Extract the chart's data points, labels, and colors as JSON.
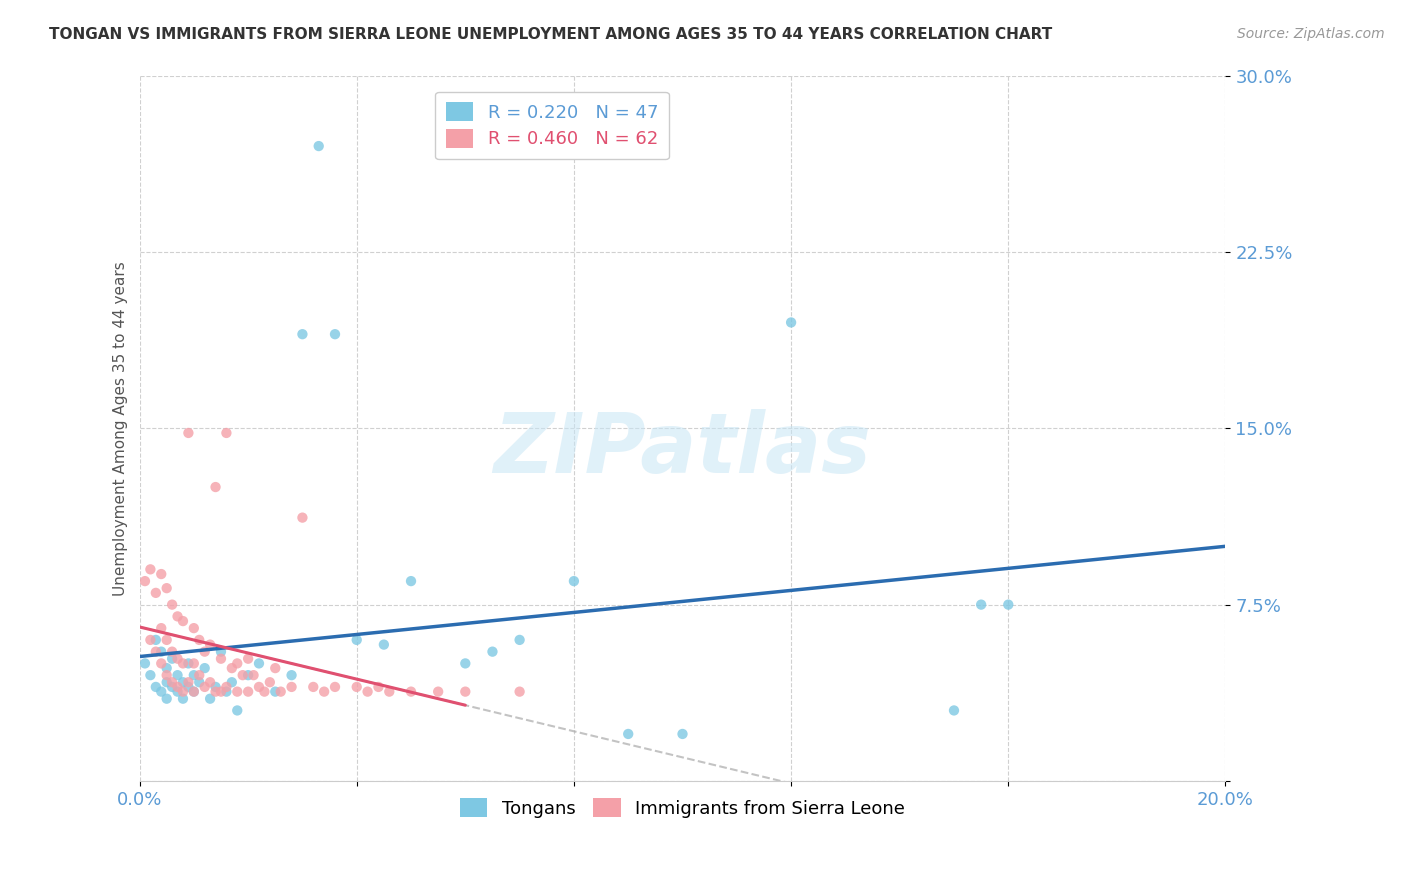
{
  "title": "TONGAN VS IMMIGRANTS FROM SIERRA LEONE UNEMPLOYMENT AMONG AGES 35 TO 44 YEARS CORRELATION CHART",
  "source": "Source: ZipAtlas.com",
  "xlabel": "",
  "ylabel": "Unemployment Among Ages 35 to 44 years",
  "xlim": [
    0.0,
    0.2
  ],
  "ylim": [
    0.0,
    0.3
  ],
  "xticks": [
    0.0,
    0.04,
    0.08,
    0.12,
    0.16,
    0.2
  ],
  "yticks": [
    0.0,
    0.075,
    0.15,
    0.225,
    0.3
  ],
  "xtick_labels": [
    "0.0%",
    "",
    "",
    "",
    "",
    "20.0%"
  ],
  "ytick_labels": [
    "",
    "7.5%",
    "15.0%",
    "22.5%",
    "30.0%"
  ],
  "blue_color": "#7ec8e3",
  "pink_color": "#f4a0a8",
  "blue_line_color": "#2b6cb0",
  "pink_line_color": "#e05070",
  "watermark": "ZIPatlas",
  "background_color": "#ffffff",
  "tongans_R": 0.22,
  "tongans_N": 47,
  "sierra_leone_R": 0.46,
  "sierra_leone_N": 62,
  "tongans_x": [
    0.001,
    0.002,
    0.003,
    0.003,
    0.004,
    0.004,
    0.005,
    0.005,
    0.005,
    0.006,
    0.006,
    0.007,
    0.007,
    0.008,
    0.008,
    0.009,
    0.009,
    0.01,
    0.01,
    0.011,
    0.012,
    0.013,
    0.014,
    0.015,
    0.016,
    0.017,
    0.018,
    0.02,
    0.022,
    0.025,
    0.028,
    0.03,
    0.033,
    0.036,
    0.04,
    0.045,
    0.05,
    0.06,
    0.065,
    0.07,
    0.08,
    0.09,
    0.1,
    0.12,
    0.15,
    0.155,
    0.16
  ],
  "tongans_y": [
    0.05,
    0.045,
    0.04,
    0.06,
    0.038,
    0.055,
    0.042,
    0.035,
    0.048,
    0.04,
    0.052,
    0.038,
    0.045,
    0.042,
    0.035,
    0.05,
    0.04,
    0.045,
    0.038,
    0.042,
    0.048,
    0.035,
    0.04,
    0.055,
    0.038,
    0.042,
    0.03,
    0.045,
    0.05,
    0.038,
    0.045,
    0.19,
    0.27,
    0.19,
    0.06,
    0.058,
    0.085,
    0.05,
    0.055,
    0.06,
    0.085,
    0.02,
    0.02,
    0.195,
    0.03,
    0.075,
    0.075
  ],
  "sierra_leone_x": [
    0.001,
    0.002,
    0.002,
    0.003,
    0.003,
    0.004,
    0.004,
    0.004,
    0.005,
    0.005,
    0.005,
    0.006,
    0.006,
    0.006,
    0.007,
    0.007,
    0.007,
    0.008,
    0.008,
    0.008,
    0.009,
    0.009,
    0.01,
    0.01,
    0.01,
    0.011,
    0.011,
    0.012,
    0.012,
    0.013,
    0.013,
    0.014,
    0.014,
    0.015,
    0.015,
    0.016,
    0.016,
    0.017,
    0.018,
    0.018,
    0.019,
    0.02,
    0.02,
    0.021,
    0.022,
    0.023,
    0.024,
    0.025,
    0.026,
    0.028,
    0.03,
    0.032,
    0.034,
    0.036,
    0.04,
    0.042,
    0.044,
    0.046,
    0.05,
    0.055,
    0.06,
    0.07
  ],
  "sierra_leone_y": [
    0.085,
    0.09,
    0.06,
    0.08,
    0.055,
    0.088,
    0.065,
    0.05,
    0.082,
    0.06,
    0.045,
    0.075,
    0.055,
    0.042,
    0.07,
    0.052,
    0.04,
    0.068,
    0.05,
    0.038,
    0.148,
    0.042,
    0.065,
    0.05,
    0.038,
    0.06,
    0.045,
    0.055,
    0.04,
    0.058,
    0.042,
    0.125,
    0.038,
    0.052,
    0.038,
    0.148,
    0.04,
    0.048,
    0.05,
    0.038,
    0.045,
    0.052,
    0.038,
    0.045,
    0.04,
    0.038,
    0.042,
    0.048,
    0.038,
    0.04,
    0.112,
    0.04,
    0.038,
    0.04,
    0.04,
    0.038,
    0.04,
    0.038,
    0.038,
    0.038,
    0.038,
    0.038
  ]
}
